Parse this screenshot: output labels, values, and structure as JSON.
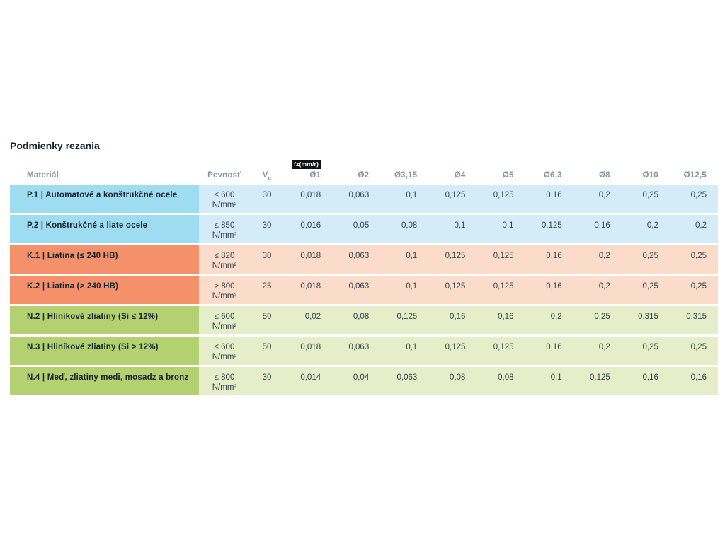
{
  "title": "Podmienky rezania",
  "table": {
    "headers": {
      "material": "Materiál",
      "strength": "Pevnosť",
      "vc_base": "V",
      "vc_sub": "c",
      "fz_badge": "fz(mm/r)",
      "diameters": [
        "Ø1",
        "Ø2",
        "Ø3,15",
        "Ø4",
        "Ø5",
        "Ø6,3",
        "Ø8",
        "Ø10",
        "Ø12,5"
      ]
    },
    "rows": [
      {
        "group": "blue",
        "material": "P.1 | Automatové a konštrukčné ocele",
        "strength": [
          "≤ 600",
          "N/mm²"
        ],
        "vc": "30",
        "values": [
          "0,018",
          "0,063",
          "0,1",
          "0,125",
          "0,125",
          "0,16",
          "0,2",
          "0,25",
          "0,25"
        ]
      },
      {
        "group": "blue",
        "material": "P.2 | Konštrukčné a liate ocele",
        "strength": [
          "≤ 850",
          "N/mm²"
        ],
        "vc": "30",
        "values": [
          "0,016",
          "0,05",
          "0,08",
          "0,1",
          "0,1",
          "0,125",
          "0,16",
          "0,2",
          "0,2"
        ]
      },
      {
        "group": "orange",
        "material": "K.1 | Liatina (≤ 240 HB)",
        "strength": [
          "≤ 820",
          "N/mm²"
        ],
        "vc": "30",
        "values": [
          "0,018",
          "0,063",
          "0,1",
          "0,125",
          "0,125",
          "0,16",
          "0,2",
          "0,25",
          "0,25"
        ]
      },
      {
        "group": "orange",
        "material": "K.2 | Liatina (> 240 HB)",
        "strength": [
          "> 800",
          "N/mm²"
        ],
        "vc": "25",
        "values": [
          "0,018",
          "0,063",
          "0,1",
          "0,125",
          "0,125",
          "0,16",
          "0,2",
          "0,25",
          "0,25"
        ]
      },
      {
        "group": "green",
        "material": "N.2 | Hliníkové zliatiny (Si ≤ 12%)",
        "strength": [
          "≤ 600",
          "N/mm²"
        ],
        "vc": "50",
        "values": [
          "0,02",
          "0,08",
          "0,125",
          "0,16",
          "0,16",
          "0,2",
          "0,25",
          "0,315",
          "0,315"
        ]
      },
      {
        "group": "green",
        "material": "N.3 | Hliníkové zliatiny (Si > 12%)",
        "strength": [
          "≤ 600",
          "N/mm²"
        ],
        "vc": "50",
        "values": [
          "0,018",
          "0,063",
          "0,1",
          "0,125",
          "0,125",
          "0,16",
          "0,2",
          "0,25",
          "0,25"
        ]
      },
      {
        "group": "green",
        "material": "N.4 | Meď, zliatiny medi, mosadz a bronz",
        "strength": [
          "≤ 800",
          "N/mm²"
        ],
        "vc": "30",
        "values": [
          "0,014",
          "0,04",
          "0,063",
          "0,08",
          "0,08",
          "0,1",
          "0,125",
          "0,16",
          "0,16"
        ]
      }
    ],
    "colors": {
      "blue": {
        "label_bg": "#9edcf2",
        "data_bg": "#d3ecf8"
      },
      "orange": {
        "label_bg": "#f4916b",
        "data_bg": "#fbdcca"
      },
      "green": {
        "label_bg": "#b3d170",
        "data_bg": "#e5eec8"
      },
      "badge_bg": "#0e1214",
      "badge_text": "#ffffff",
      "header_text": "#87929a",
      "material_text": "#16242d",
      "value_text": "#34434d",
      "page_bg": "#ffffff"
    }
  }
}
